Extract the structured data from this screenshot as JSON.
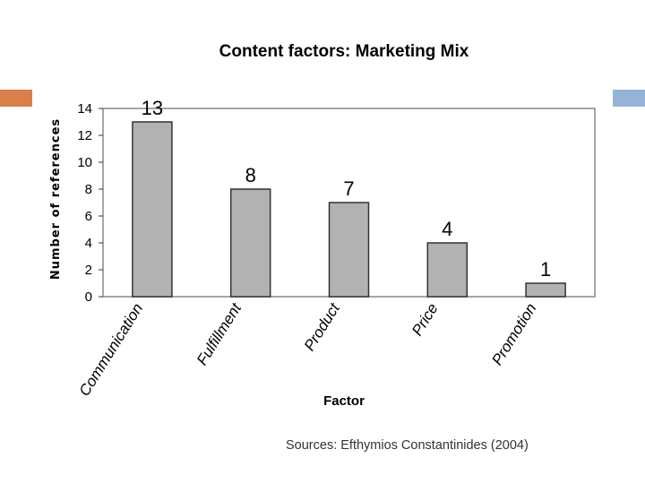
{
  "colors": {
    "accent_left": "#d9804a",
    "accent_right": "#95b3d7",
    "bar_fill": "#b2b2b2",
    "bar_stroke": "#333333",
    "text": "#000000"
  },
  "chart_data": {
    "type": "bar",
    "title": "Content factors: Marketing Mix",
    "xlabel": "Factor",
    "ylabel": "Number of references",
    "categories": [
      "Communication",
      "Fulfillment",
      "Product",
      "Price",
      "Promotion"
    ],
    "values": [
      13,
      8,
      7,
      4,
      1
    ],
    "data_labels": [
      "13",
      "8",
      "7",
      "4",
      "1"
    ],
    "ylim": [
      0,
      14
    ],
    "yticks": [
      0,
      2,
      4,
      6,
      8,
      10,
      12,
      14
    ],
    "grid": false,
    "legend": "none"
  },
  "footer": {
    "source": "Sources: Efthymios Constantinides (2004)"
  }
}
